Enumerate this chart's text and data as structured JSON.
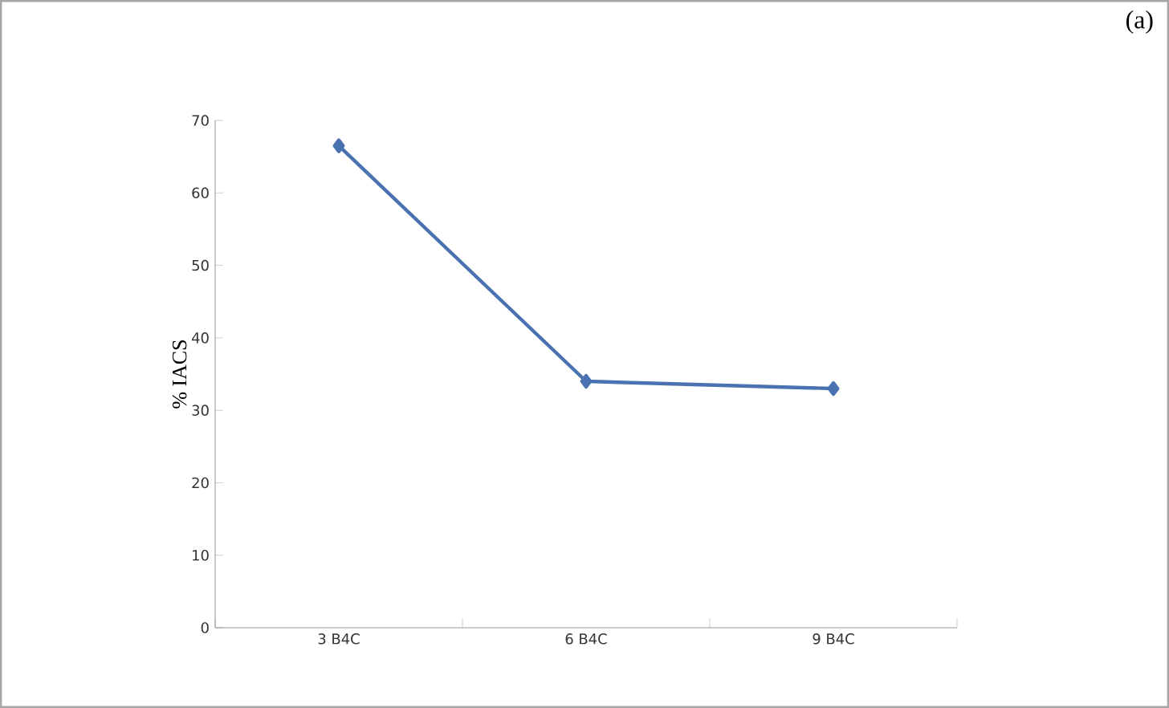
{
  "chart_data": {
    "type": "line",
    "ylabel": "% IACS",
    "categories": [
      "3 B4C",
      "6 B4C",
      "9 B4C"
    ],
    "series": [
      {
        "color": "#4a72b0",
        "values": [
          66.5,
          34,
          33
        ]
      }
    ],
    "ylim": [
      0,
      70
    ],
    "yticks": [
      0,
      10,
      20,
      30,
      40,
      50,
      60,
      70
    ],
    "marker": "diamond",
    "grid": false,
    "annotations": [
      "(a)"
    ]
  }
}
